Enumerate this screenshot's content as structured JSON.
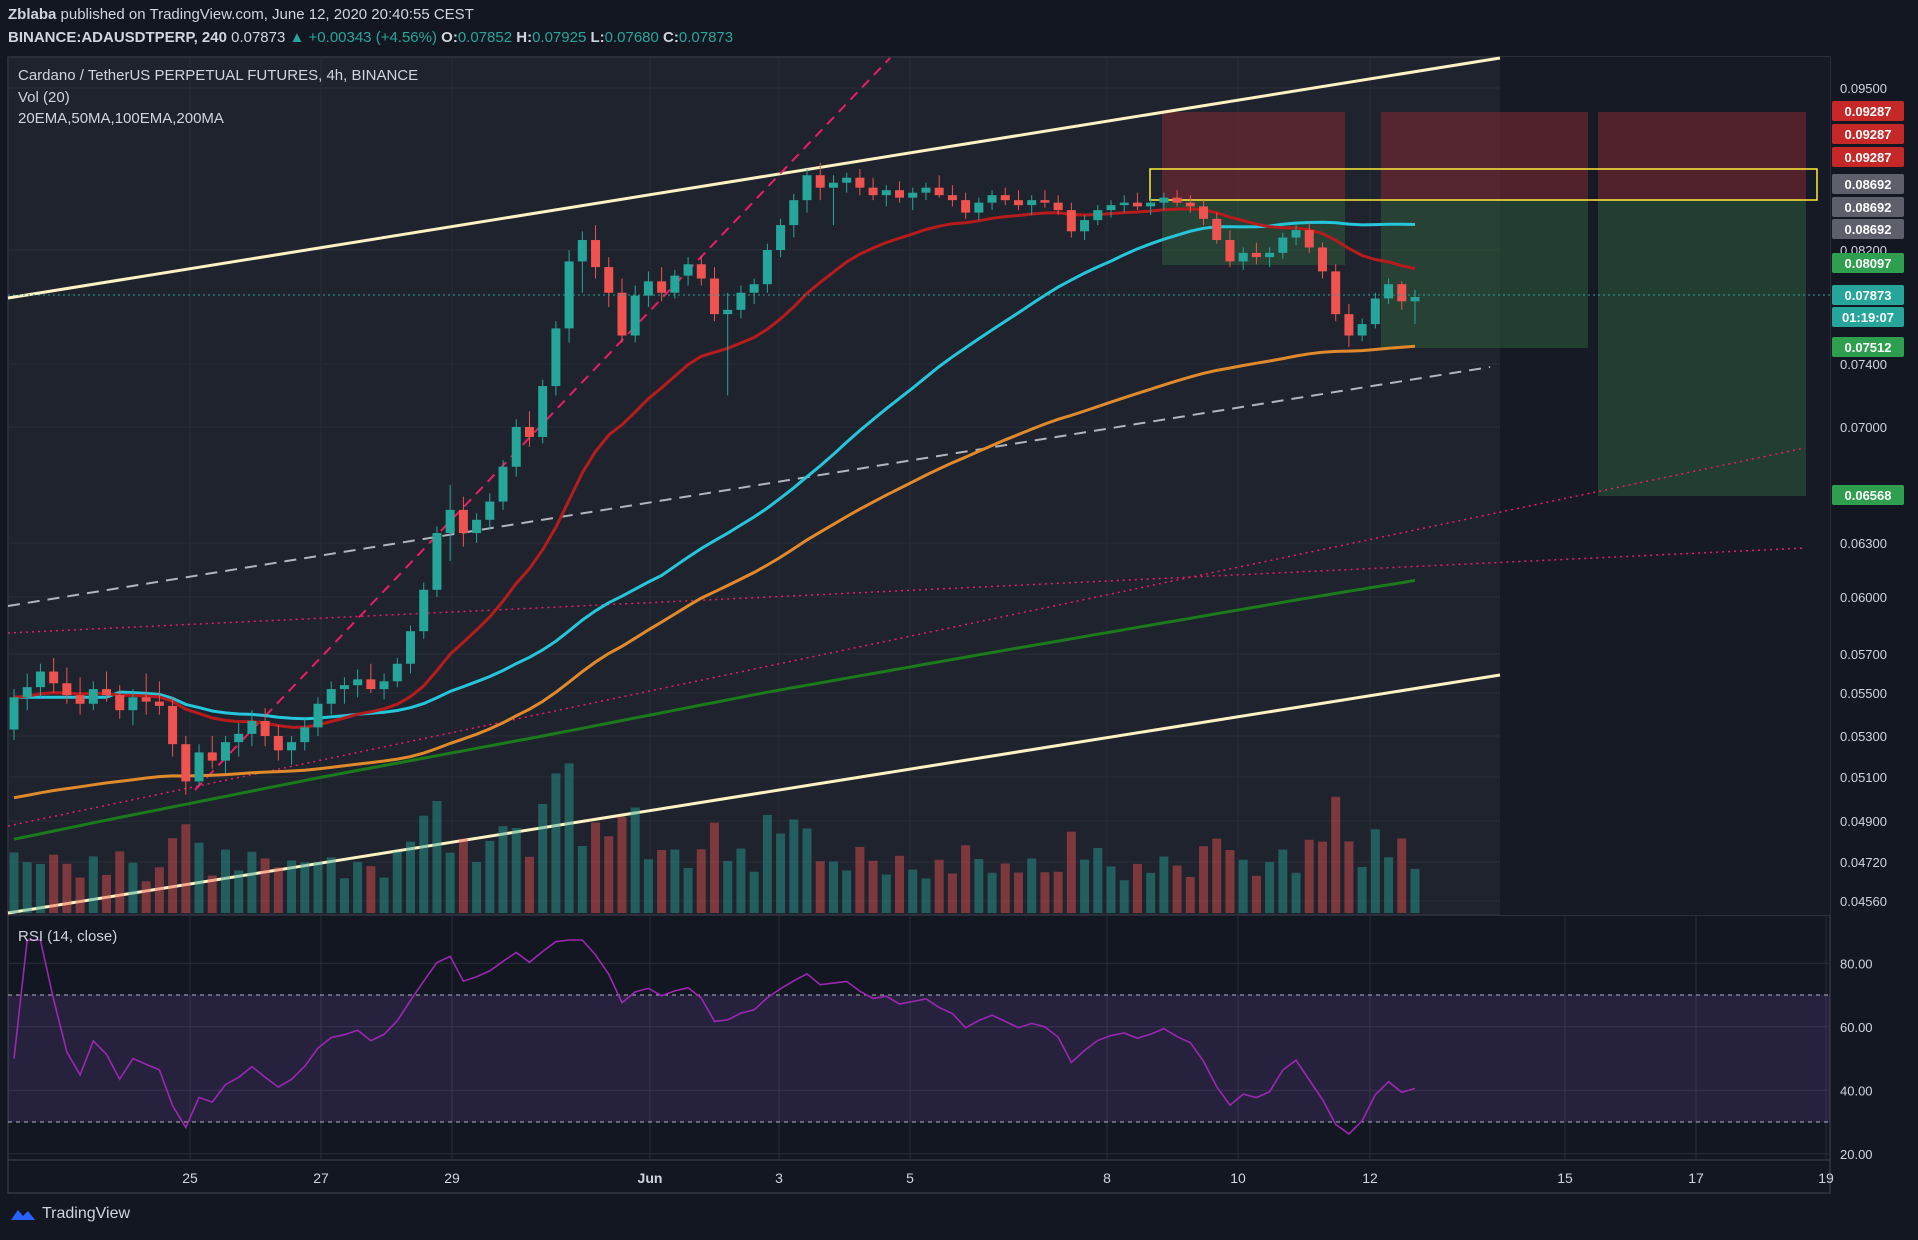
{
  "header": {
    "author": "Zblaba",
    "published": "published on TradingView.com, June 12, 2020 20:40:55 CEST",
    "symbol": "BINANCE:ADAUSDTPERP, 240",
    "last": "0.07873",
    "change": "+0.00343 (+4.56%)",
    "o_label": "O:",
    "o": "0.07852",
    "h_label": "H:",
    "h": "0.07925",
    "l_label": "L:",
    "l": "0.07680",
    "c_label": "C:",
    "c": "0.07873"
  },
  "overlay": {
    "title": "Cardano / TetherUS PERPETUAL FUTURES, 4h, BINANCE",
    "vol": "Vol (20)",
    "mas": "20EMA,50MA,100EMA,200MA",
    "rsi": "RSI (14, close)"
  },
  "footer": {
    "brand": "TradingView"
  },
  "colors": {
    "background": "#131722",
    "up": "#26a69a",
    "down": "#ef5350",
    "ema20": "#b71c1c",
    "ma50": "#26c6da",
    "ema100": "#e08a2c",
    "ma200": "#1b7a1b",
    "rsi": "#9c27b0",
    "channel": "#fff3c4",
    "zone_box": "#ffeb3b"
  },
  "chart_data": {
    "type": "candlestick",
    "title": "Cardano / TetherUS PERPETUAL FUTURES, 4h, BINANCE",
    "x_ticks": [
      "25",
      "27",
      "29",
      "Jun",
      "3",
      "5",
      "8",
      "10",
      "12",
      "15",
      "17",
      "19"
    ],
    "y_ticks": [
      "0.09500",
      "0.08200",
      "0.07400",
      "0.07000",
      "0.06300",
      "0.06000",
      "0.05700",
      "0.05500",
      "0.05300",
      "0.05100",
      "0.04900",
      "0.04720",
      "0.04560"
    ],
    "price_labels": [
      {
        "text": "0.09287",
        "color": "#c62828"
      },
      {
        "text": "0.09287",
        "color": "#c62828"
      },
      {
        "text": "0.09287",
        "color": "#c62828"
      },
      {
        "text": "0.08692",
        "color": "#5d606b"
      },
      {
        "text": "0.08692",
        "color": "#5d606b"
      },
      {
        "text": "0.08692",
        "color": "#5d606b"
      },
      {
        "text": "0.08097",
        "color": "#2e9e4f"
      },
      {
        "text": "0.07873",
        "color": "#26a69a"
      },
      {
        "text": "01:19:07",
        "color": "#26a69a"
      },
      {
        "text": "0.07512",
        "color": "#2e9e4f"
      },
      {
        "text": "0.06568",
        "color": "#2e9e4f"
      }
    ],
    "rsi_ticks": [
      "80.00",
      "60.00",
      "40.00",
      "20.00"
    ],
    "rsi_band": [
      30,
      70
    ],
    "ohlc_approx": [
      [
        0.0533,
        0.0552,
        0.0528,
        0.0548
      ],
      [
        0.0548,
        0.056,
        0.0542,
        0.0553
      ],
      [
        0.0553,
        0.0565,
        0.0548,
        0.0561
      ],
      [
        0.0561,
        0.0568,
        0.055,
        0.0555
      ],
      [
        0.0555,
        0.0563,
        0.0545,
        0.0549
      ],
      [
        0.0549,
        0.0558,
        0.054,
        0.0545
      ],
      [
        0.0545,
        0.0556,
        0.0542,
        0.0552
      ],
      [
        0.0552,
        0.0561,
        0.0546,
        0.0549
      ],
      [
        0.0549,
        0.0554,
        0.0538,
        0.0542
      ],
      [
        0.0542,
        0.0552,
        0.0535,
        0.0548
      ],
      [
        0.0548,
        0.056,
        0.054,
        0.0546
      ],
      [
        0.0546,
        0.0556,
        0.054,
        0.0544
      ],
      [
        0.0544,
        0.0548,
        0.052,
        0.0526
      ],
      [
        0.0526,
        0.053,
        0.0502,
        0.0508
      ],
      [
        0.0508,
        0.0526,
        0.0506,
        0.0522
      ],
      [
        0.0522,
        0.053,
        0.0514,
        0.0518
      ],
      [
        0.0518,
        0.053,
        0.0512,
        0.0527
      ],
      [
        0.0527,
        0.0536,
        0.052,
        0.0531
      ],
      [
        0.0531,
        0.0542,
        0.0525,
        0.0537
      ],
      [
        0.0537,
        0.0543,
        0.0525,
        0.053
      ],
      [
        0.053,
        0.0535,
        0.0518,
        0.0523
      ],
      [
        0.0523,
        0.053,
        0.0516,
        0.0527
      ],
      [
        0.0527,
        0.0538,
        0.0523,
        0.0534
      ],
      [
        0.0534,
        0.0548,
        0.053,
        0.0545
      ],
      [
        0.0545,
        0.0556,
        0.054,
        0.0552
      ],
      [
        0.0552,
        0.0558,
        0.0545,
        0.0554
      ],
      [
        0.0554,
        0.0562,
        0.0548,
        0.0557
      ],
      [
        0.0557,
        0.0565,
        0.055,
        0.0552
      ],
      [
        0.0552,
        0.056,
        0.0547,
        0.0556
      ],
      [
        0.0556,
        0.0568,
        0.0553,
        0.0565
      ],
      [
        0.0565,
        0.0585,
        0.056,
        0.0582
      ],
      [
        0.0582,
        0.0608,
        0.0578,
        0.0604
      ],
      [
        0.0604,
        0.064,
        0.06,
        0.0636
      ],
      [
        0.0636,
        0.0665,
        0.062,
        0.065
      ],
      [
        0.065,
        0.0658,
        0.0628,
        0.0636
      ],
      [
        0.0636,
        0.0648,
        0.063,
        0.0644
      ],
      [
        0.0644,
        0.066,
        0.0638,
        0.0655
      ],
      [
        0.0655,
        0.068,
        0.065,
        0.0676
      ],
      [
        0.0676,
        0.0705,
        0.067,
        0.07
      ],
      [
        0.07,
        0.071,
        0.0688,
        0.0694
      ],
      [
        0.0694,
        0.073,
        0.069,
        0.0726
      ],
      [
        0.0726,
        0.077,
        0.072,
        0.0765
      ],
      [
        0.0765,
        0.082,
        0.0755,
        0.0812
      ],
      [
        0.0812,
        0.0835,
        0.079,
        0.0828
      ],
      [
        0.0828,
        0.084,
        0.08,
        0.0808
      ],
      [
        0.0808,
        0.0815,
        0.078,
        0.079
      ],
      [
        0.079,
        0.08,
        0.0755,
        0.076
      ],
      [
        0.076,
        0.0795,
        0.0755,
        0.0788
      ],
      [
        0.0788,
        0.0805,
        0.078,
        0.0798
      ],
      [
        0.0798,
        0.0808,
        0.0784,
        0.079
      ],
      [
        0.079,
        0.0806,
        0.0786,
        0.0802
      ],
      [
        0.0802,
        0.0815,
        0.0795,
        0.081
      ],
      [
        0.081,
        0.0816,
        0.0795,
        0.08
      ],
      [
        0.08,
        0.0808,
        0.077,
        0.0775
      ],
      [
        0.0775,
        0.079,
        0.072,
        0.0778
      ],
      [
        0.0778,
        0.0795,
        0.0772,
        0.079
      ],
      [
        0.079,
        0.08,
        0.0782,
        0.0796
      ],
      [
        0.0796,
        0.0825,
        0.079,
        0.082
      ],
      [
        0.082,
        0.0845,
        0.0815,
        0.084
      ],
      [
        0.084,
        0.0865,
        0.083,
        0.086
      ],
      [
        0.086,
        0.0885,
        0.085,
        0.088
      ],
      [
        0.088,
        0.089,
        0.086,
        0.087
      ],
      [
        0.087,
        0.088,
        0.084,
        0.0874
      ],
      [
        0.0874,
        0.0882,
        0.0866,
        0.0878
      ],
      [
        0.0878,
        0.0885,
        0.0864,
        0.087
      ],
      [
        0.087,
        0.0878,
        0.086,
        0.0864
      ],
      [
        0.0864,
        0.0872,
        0.0855,
        0.0868
      ],
      [
        0.0868,
        0.0875,
        0.0858,
        0.0862
      ],
      [
        0.0862,
        0.087,
        0.0852,
        0.0866
      ],
      [
        0.0866,
        0.0874,
        0.086,
        0.087
      ],
      [
        0.087,
        0.088,
        0.0862,
        0.0864
      ],
      [
        0.0864,
        0.0872,
        0.0855,
        0.086
      ],
      [
        0.086,
        0.0866,
        0.0845,
        0.085
      ],
      [
        0.085,
        0.0862,
        0.0844,
        0.0858
      ],
      [
        0.0858,
        0.0868,
        0.0852,
        0.0864
      ],
      [
        0.0864,
        0.087,
        0.0856,
        0.086
      ],
      [
        0.086,
        0.0868,
        0.0852,
        0.0856
      ],
      [
        0.0856,
        0.0864,
        0.0848,
        0.086
      ],
      [
        0.086,
        0.0868,
        0.0854,
        0.0858
      ],
      [
        0.0858,
        0.0864,
        0.0848,
        0.0852
      ],
      [
        0.0852,
        0.0858,
        0.083,
        0.0835
      ],
      [
        0.0835,
        0.0848,
        0.0828,
        0.0844
      ],
      [
        0.0844,
        0.0856,
        0.084,
        0.0852
      ],
      [
        0.0852,
        0.086,
        0.0846,
        0.0856
      ],
      [
        0.0856,
        0.0864,
        0.085,
        0.0858
      ],
      [
        0.0858,
        0.0866,
        0.0852,
        0.0855
      ],
      [
        0.0855,
        0.0862,
        0.0848,
        0.0858
      ],
      [
        0.0858,
        0.0866,
        0.0852,
        0.0862
      ],
      [
        0.0862,
        0.0868,
        0.0855,
        0.0858
      ],
      [
        0.0858,
        0.0864,
        0.085,
        0.0855
      ],
      [
        0.0855,
        0.086,
        0.084,
        0.0845
      ],
      [
        0.0845,
        0.085,
        0.0825,
        0.0828
      ],
      [
        0.0828,
        0.0836,
        0.0808,
        0.0812
      ],
      [
        0.0812,
        0.0822,
        0.0806,
        0.0818
      ],
      [
        0.0818,
        0.0826,
        0.081,
        0.0815
      ],
      [
        0.0815,
        0.0822,
        0.0808,
        0.0818
      ],
      [
        0.0818,
        0.0834,
        0.0814,
        0.083
      ],
      [
        0.083,
        0.084,
        0.0824,
        0.0836
      ],
      [
        0.0836,
        0.0842,
        0.0818,
        0.0822
      ],
      [
        0.0822,
        0.0826,
        0.08,
        0.0805
      ],
      [
        0.0805,
        0.081,
        0.077,
        0.0775
      ],
      [
        0.0775,
        0.0782,
        0.0752,
        0.076
      ],
      [
        0.076,
        0.0772,
        0.0756,
        0.0768
      ],
      [
        0.0768,
        0.079,
        0.0765,
        0.0786
      ],
      [
        0.0786,
        0.08,
        0.0782,
        0.0796
      ],
      [
        0.0796,
        0.0798,
        0.0778,
        0.0784
      ],
      [
        0.0784,
        0.0792,
        0.0768,
        0.0787
      ]
    ]
  }
}
